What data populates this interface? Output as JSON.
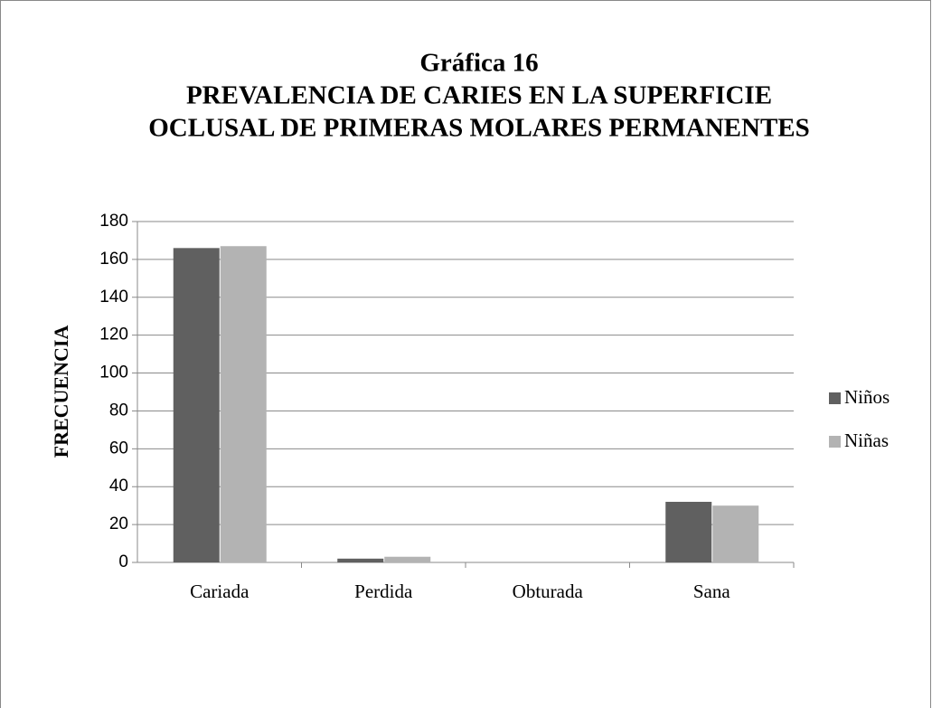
{
  "chart_data": {
    "type": "bar",
    "title": [
      "Gráfica 16",
      "PREVALENCIA DE CARIES EN LA SUPERFICIE",
      "OCLUSAL DE PRIMERAS MOLARES PERMANENTES"
    ],
    "y_label": "FRECUENCIA",
    "categories": [
      "Cariada",
      "Perdida",
      "Obturada",
      "Sana"
    ],
    "series": [
      {
        "name": "Niños",
        "color": "#606060",
        "values": [
          166,
          2,
          0,
          32
        ]
      },
      {
        "name": "Niñas",
        "color": "#b3b3b3",
        "values": [
          167,
          3,
          0,
          30
        ]
      }
    ],
    "ylim": [
      0,
      180
    ],
    "yticks": [
      0,
      20,
      40,
      60,
      80,
      100,
      120,
      140,
      160,
      180
    ],
    "grid": true,
    "legend": "right"
  }
}
